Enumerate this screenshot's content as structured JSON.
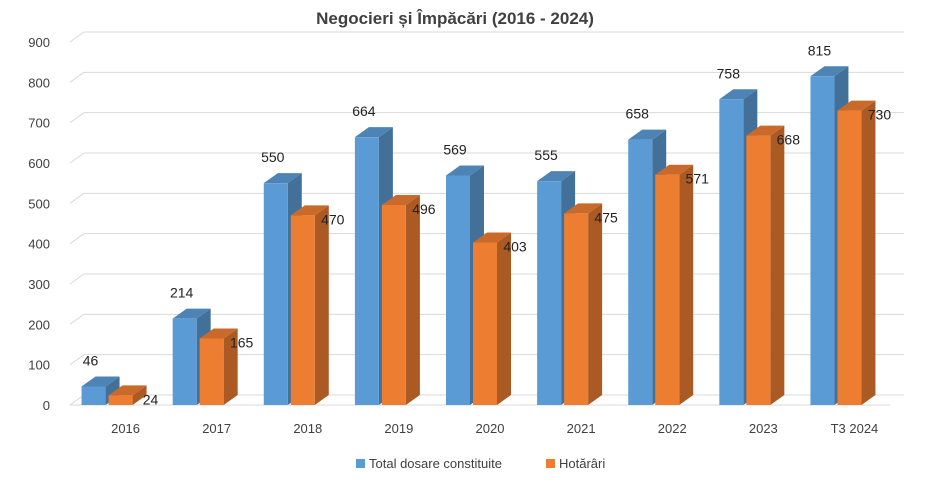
{
  "chart_data": {
    "type": "bar",
    "title": "Negocieri și Împăcări (2016 - 2024)",
    "categories": [
      "2016",
      "2017",
      "2018",
      "2019",
      "2020",
      "2021",
      "2022",
      "2023",
      "T3 2024"
    ],
    "series": [
      {
        "name": "Total dosare constituite",
        "color": "#5b9bd5",
        "values": [
          46,
          214,
          550,
          664,
          569,
          555,
          658,
          758,
          815
        ]
      },
      {
        "name": "Hotărâri",
        "color": "#ed7d31",
        "values": [
          24,
          165,
          470,
          496,
          403,
          475,
          571,
          668,
          730
        ]
      }
    ],
    "ylim": [
      0,
      900
    ],
    "yticks": [
      0,
      100,
      200,
      300,
      400,
      500,
      600,
      700,
      800,
      900
    ],
    "grid": true,
    "legend_position": "bottom",
    "style": "3d-clustered-column"
  }
}
